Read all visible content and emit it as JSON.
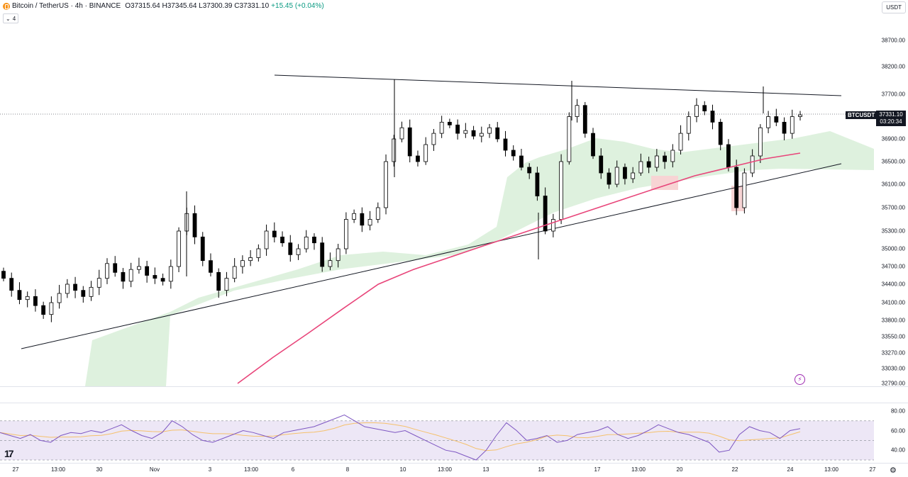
{
  "legend": {
    "symbol": "Bitcoin / TetherUS · 4h · BINANCE",
    "ohlc": "O37315.64 H37345.64 L37300.39 C37331.10",
    "change": "+15.45 (+0.04%)",
    "collapse_count": "4"
  },
  "currency": "USDT",
  "symbol_tag": "BTCUSDT",
  "last_price": "37331.10",
  "countdown": "03:20:34",
  "price_axis": [
    {
      "label": "38700.00",
      "value": 38700
    },
    {
      "label": "38200.00",
      "value": 38200
    },
    {
      "label": "37700.00",
      "value": 37700
    },
    {
      "label": "36900.00",
      "value": 36900
    },
    {
      "label": "36500.00",
      "value": 36500
    },
    {
      "label": "36100.00",
      "value": 36100
    },
    {
      "label": "35700.00",
      "value": 35700
    },
    {
      "label": "35300.00",
      "value": 35300
    },
    {
      "label": "35000.00",
      "value": 35000
    },
    {
      "label": "34700.00",
      "value": 34700
    },
    {
      "label": "34400.00",
      "value": 34400
    },
    {
      "label": "34100.00",
      "value": 34100
    },
    {
      "label": "33800.00",
      "value": 33800
    },
    {
      "label": "33550.00",
      "value": 33550
    },
    {
      "label": "33270.00",
      "value": 33270
    },
    {
      "label": "33030.00",
      "value": 33030
    },
    {
      "label": "32790.00",
      "value": 32790
    }
  ],
  "osc_axis": [
    {
      "label": "80.00",
      "value": 80
    },
    {
      "label": "60.00",
      "value": 60
    },
    {
      "label": "40.00",
      "value": 40
    }
  ],
  "time_axis": [
    "27",
    "13:00",
    "30",
    "Nov",
    "3",
    "13:00",
    "6",
    "8",
    "10",
    "13:00",
    "13",
    "15",
    "17",
    "13:00",
    "20",
    "22",
    "24",
    "13:00",
    "27"
  ],
  "colors": {
    "up": "#ffffff",
    "down": "#000000",
    "cloud": "#d8efd8",
    "cloud_red": "#f7d4d4",
    "ma": "#e8457a",
    "rsi": "#7e57c2",
    "rsi_ma": "#f5c16c",
    "rsi_band": "#ede7f6"
  },
  "chart_data": {
    "type": "candlestick",
    "ylim": [
      32790,
      38700
    ],
    "close_series": [
      34500,
      34300,
      34150,
      34200,
      34050,
      33900,
      34100,
      34250,
      34400,
      34300,
      34200,
      34350,
      34500,
      34750,
      34600,
      34450,
      34650,
      34700,
      34550,
      34500,
      34450,
      34700,
      35300,
      35600,
      35200,
      34800,
      34600,
      34300,
      34500,
      34700,
      34800,
      34850,
      35000,
      35300,
      35200,
      35100,
      34900,
      35000,
      35200,
      35100,
      34700,
      34800,
      35000,
      35500,
      35600,
      35400,
      35500,
      35700,
      36500,
      36900,
      37100,
      36600,
      36500,
      36800,
      37000,
      37200,
      37150,
      37000,
      37050,
      36950,
      37000,
      37100,
      36900,
      36700,
      36600,
      36400,
      36300,
      35900,
      35300,
      35500,
      36500,
      37300,
      37500,
      37000,
      36600,
      36300,
      36100,
      36400,
      36200,
      36300,
      36500,
      36400,
      36600,
      36500,
      36700,
      37000,
      37300,
      37500,
      37400,
      37200,
      36800,
      36400,
      35700,
      36300,
      36600,
      37100,
      37300,
      37200,
      37000,
      37300,
      37331
    ],
    "ma_series": [
      32790,
      33200,
      33600,
      34000,
      34400,
      34650,
      34850,
      35050,
      35250,
      35450,
      35650,
      35850,
      36050,
      36250,
      36400,
      36550,
      36650
    ],
    "rsi_series": [
      58,
      55,
      52,
      56,
      50,
      48,
      55,
      58,
      57,
      60,
      58,
      62,
      66,
      60,
      55,
      52,
      58,
      70,
      64,
      56,
      50,
      48,
      52,
      56,
      60,
      58,
      55,
      52,
      58,
      60,
      62,
      64,
      68,
      72,
      76,
      70,
      64,
      62,
      60,
      58,
      60,
      55,
      50,
      45,
      40,
      38,
      34,
      30,
      40,
      55,
      68,
      60,
      50,
      52,
      55,
      48,
      50,
      56,
      58,
      60,
      64,
      56,
      52,
      55,
      60,
      66,
      62,
      58,
      56,
      52,
      48,
      38,
      40,
      56,
      64,
      60,
      58,
      52,
      60,
      62
    ],
    "rsi_range": [
      30,
      85
    ]
  }
}
